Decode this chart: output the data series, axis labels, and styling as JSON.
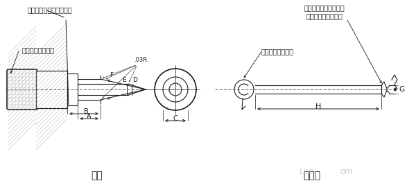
{
  "bg_color": "#ffffff",
  "title": "量规",
  "title2": "量规销",
  "label_left_top1": "此面以外的形式是随意的",
  "label_left_bottom": "用于绑量规销的孔",
  "label_right_top1": "在此长度范围内必须保",
  "label_right_top2": "证销的圆度和直线度",
  "label_right_bottom": "可选择的头部形状",
  "dim_A": "A",
  "dim_B": "B",
  "dim_C": "C",
  "dim_D": "D",
  "dim_E": "E",
  "dim_F": "F",
  "dim_G": "G",
  "dim_H": "H",
  "dim_03R": ".03R",
  "watermark1": "Luo",
  "watermark2": "om"
}
